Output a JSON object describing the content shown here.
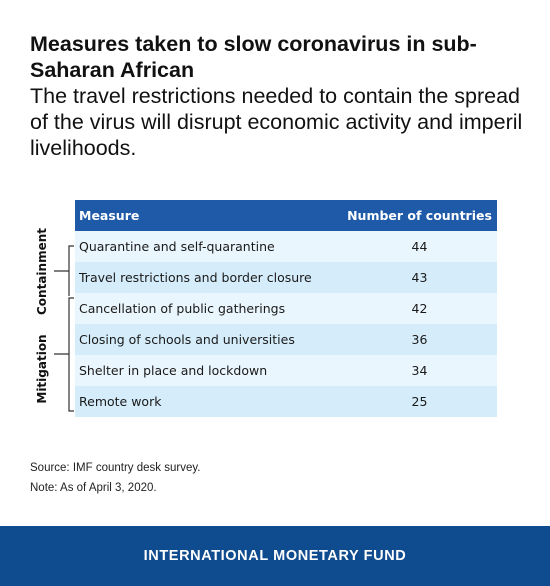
{
  "header": {
    "title": "Measures taken to slow coronavirus in sub-Saharan African",
    "subtitle": "The travel restrictions needed to contain the spread of the virus will disrupt economic activity and imperil livelihoods."
  },
  "chart_data": {
    "type": "table",
    "columns": [
      "Measure",
      "Number of countries"
    ],
    "rows": [
      {
        "measure": "Quarantine and self-quarantine",
        "countries": "44"
      },
      {
        "measure": "Travel restrictions and border closure",
        "countries": "43"
      },
      {
        "measure": "Cancellation of public gatherings",
        "countries": "42"
      },
      {
        "measure": "Closing of schools and universities",
        "countries": "36"
      },
      {
        "measure": "Shelter in place and lockdown",
        "countries": "34"
      },
      {
        "measure": "Remote work",
        "countries": "25"
      }
    ],
    "groups": [
      {
        "label": "Containment",
        "rows": [
          0,
          1
        ]
      },
      {
        "label": "Mitigation",
        "rows": [
          2,
          3,
          4,
          5
        ]
      }
    ],
    "colors": {
      "header": "#1f5aa8",
      "row_light": "#eaf6fd",
      "row_dark": "#d5edfb"
    }
  },
  "notes": {
    "source": "Source: IMF country desk survey.",
    "note": "Note: As of April 3, 2020."
  },
  "footer": {
    "org": "INTERNATIONAL MONETARY FUND",
    "color": "#0f4b8f"
  }
}
